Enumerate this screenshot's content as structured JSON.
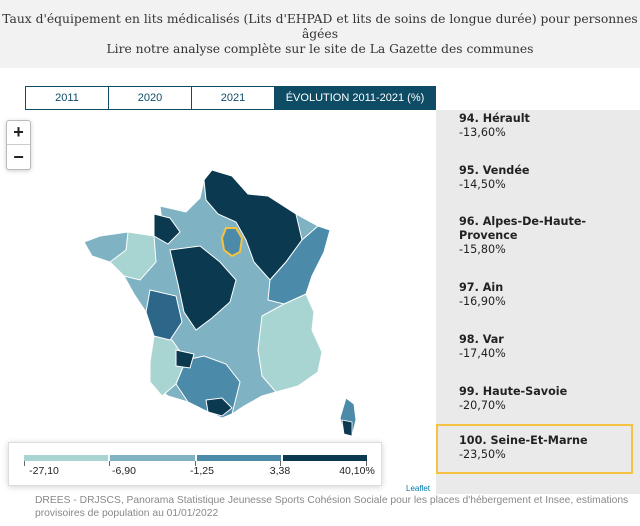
{
  "header": {
    "title_line1": "Taux d'équipement en lits médicalisés (Lits d'EHPAD et lits de soins de longue durée) pour personnes",
    "title_line2": "âgées",
    "subtitle": "Lire notre analyse complète sur le site de La Gazette des communes"
  },
  "tabs": [
    {
      "label": "2011",
      "active": false
    },
    {
      "label": "2020",
      "active": false
    },
    {
      "label": "2021",
      "active": false
    },
    {
      "label": "ÉVOLUTION 2011-2021 (%)",
      "active": true
    }
  ],
  "zoom": {
    "in_label": "+",
    "out_label": "−"
  },
  "legend": {
    "labels": [
      "-27,10",
      "-6,90",
      "-1,25",
      "3,38",
      "40,10%"
    ],
    "colors": [
      "#a8d5d1",
      "#7fb2c2",
      "#4b8aa8",
      "#2c6688",
      "#0b3a50"
    ]
  },
  "attribution": "Leaflet",
  "ranking": [
    {
      "name": "94. Hérault",
      "value": "-13,60%"
    },
    {
      "name": "95. Vendée",
      "value": "-14,50%"
    },
    {
      "name": "96. Alpes-De-Haute-Provence",
      "value": "-15,80%"
    },
    {
      "name": "97. Ain",
      "value": "-16,90%"
    },
    {
      "name": "98. Var",
      "value": "-17,40%"
    },
    {
      "name": "99. Haute-Savoie",
      "value": "-20,70%"
    },
    {
      "name": "100. Seine-Et-Marne",
      "value": "-23,50%",
      "selected": true
    }
  ],
  "footer": {
    "line1": "DREES - DRJSCS, Panorama Statistique Jeunesse Sports Cohésion Sociale pour les places d'hébergement et Insee, estimations",
    "line2": "provisoires de population au 01/01/2022"
  },
  "colors": {
    "accent": "#0e4c66",
    "highlight": "#f5c242"
  }
}
